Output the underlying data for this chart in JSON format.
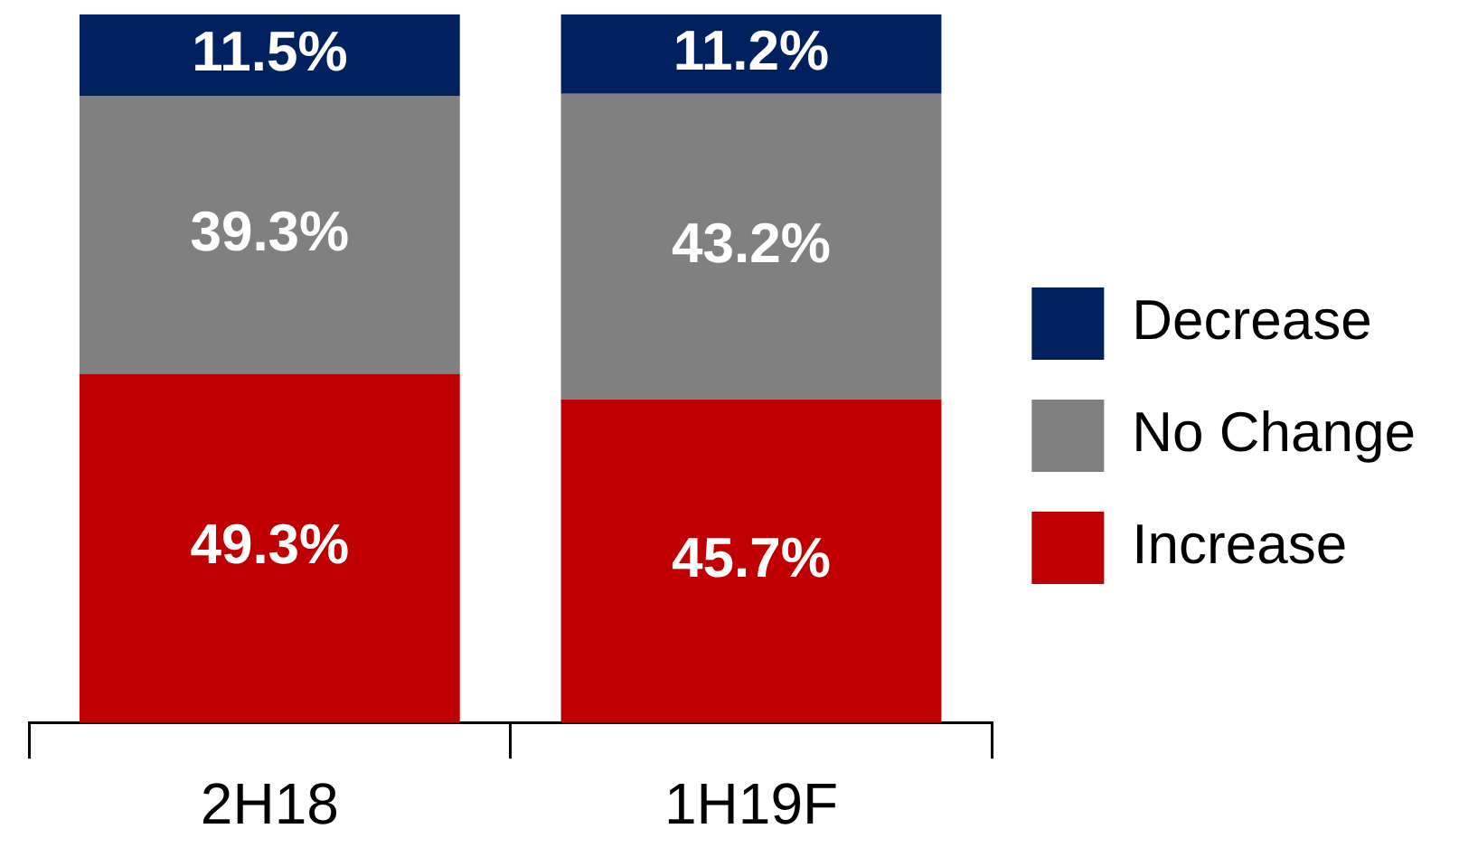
{
  "chart_data": {
    "type": "bar",
    "stacked": true,
    "categories": [
      "2H18",
      "1H19F"
    ],
    "series": [
      {
        "name": "Increase",
        "color": "#c00000",
        "values": [
          49.3,
          45.7
        ],
        "value_labels": [
          "49.3%",
          "45.7%"
        ]
      },
      {
        "name": "No Change",
        "color": "#808080",
        "values": [
          39.3,
          43.2
        ],
        "value_labels": [
          "39.3%",
          "43.2%"
        ]
      },
      {
        "name": "Decrease",
        "color": "#002060",
        "values": [
          11.5,
          11.2
        ],
        "value_labels": [
          "11.5%",
          "11.2%"
        ]
      }
    ],
    "legend": "right"
  }
}
